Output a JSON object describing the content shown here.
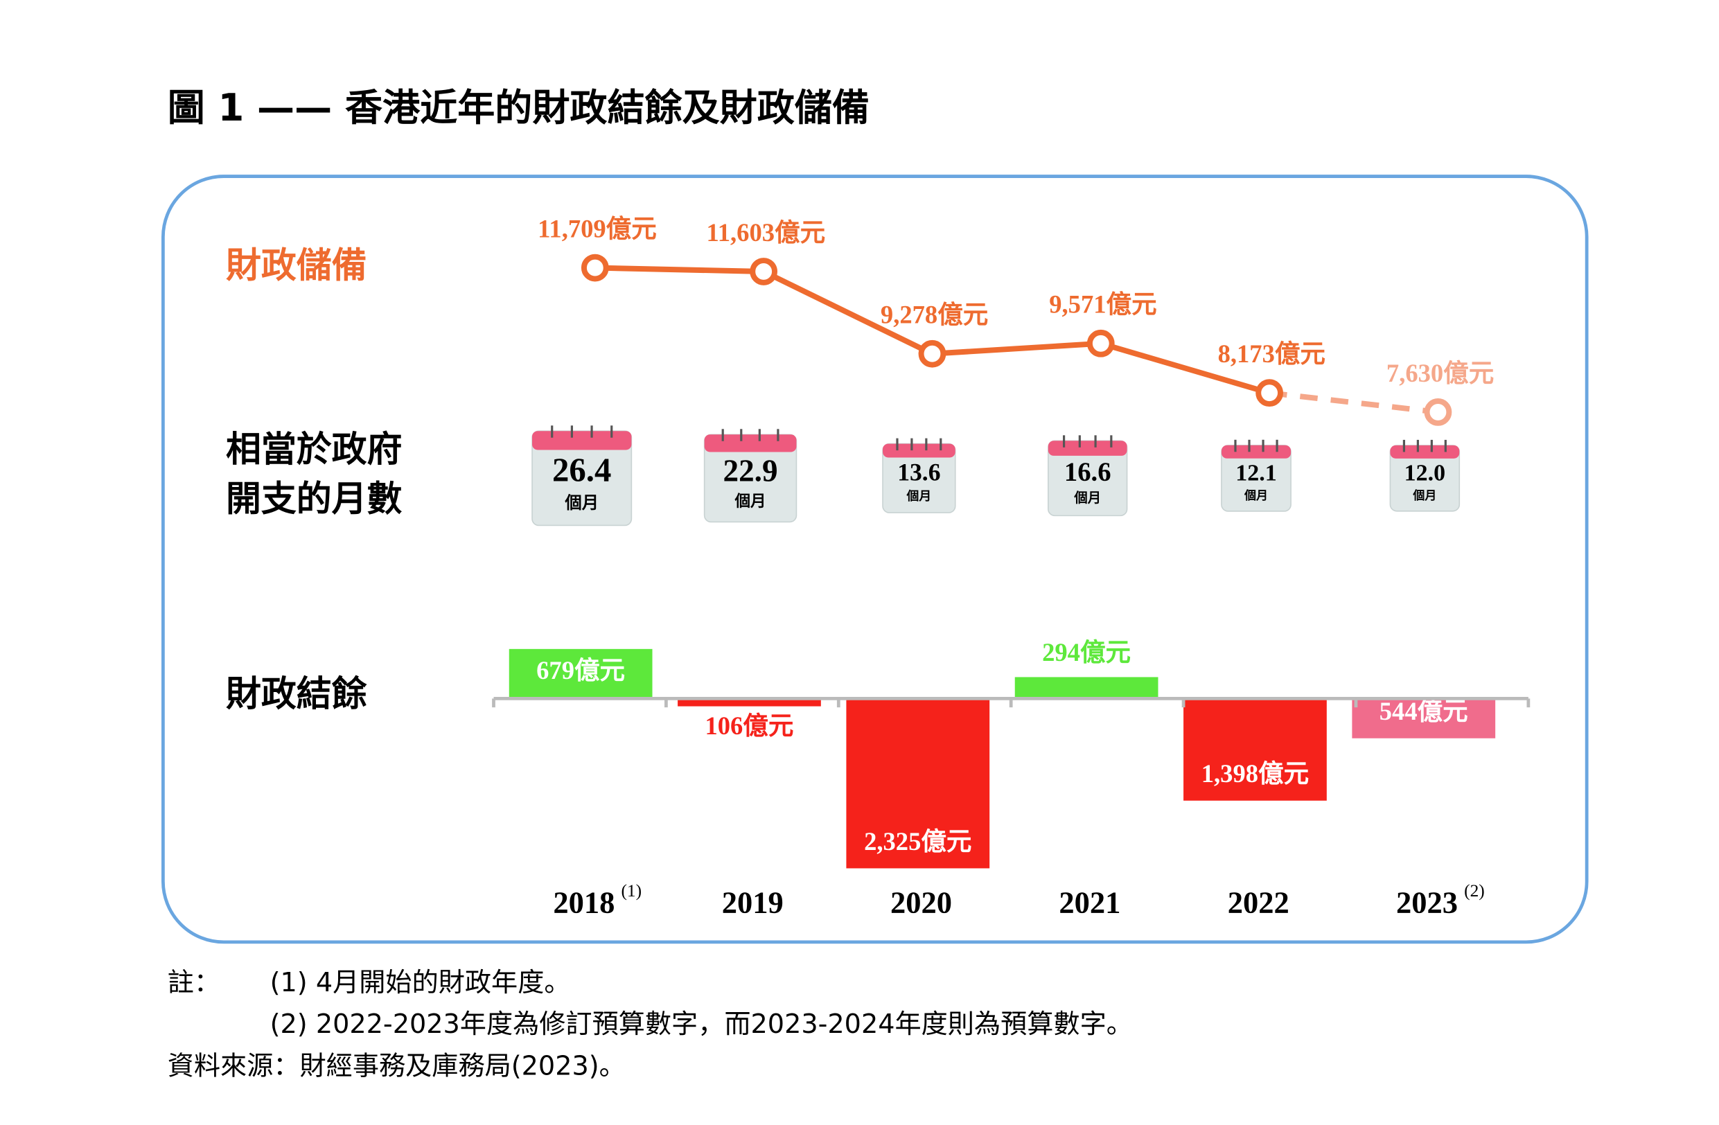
{
  "title": "圖 1 —— 香港近年的財政結餘及財政儲備",
  "chart_data": [
    {
      "type": "line",
      "label": "財政儲備",
      "categories": [
        "2018",
        "2019",
        "2020",
        "2021",
        "2022",
        "2023"
      ],
      "values": [
        11709,
        11603,
        9278,
        9571,
        8173,
        7630
      ],
      "value_labels": [
        "11,709億元",
        "11,603億元",
        "9,278億元",
        "9,571億元",
        "8,173億元",
        "7,630億元"
      ],
      "estimate": [
        false,
        false,
        false,
        false,
        false,
        true
      ],
      "color": "#ee6b2f",
      "estimate_color": "#f5a78a"
    },
    {
      "type": "calendar",
      "label": [
        "相當於政府",
        "開支的月數"
      ],
      "values": [
        26.4,
        22.9,
        13.6,
        16.6,
        12.1,
        12.0
      ],
      "value_labels": [
        "26.4",
        "22.9",
        "13.6",
        "16.6",
        "12.1",
        "12.0"
      ],
      "unit": "個月",
      "color": "#ee5a7e"
    },
    {
      "type": "bar",
      "label": "財政結餘",
      "categories": [
        "2018",
        "2019",
        "2020",
        "2021",
        "2022",
        "2023"
      ],
      "category_notes": [
        "(1)",
        null,
        null,
        null,
        null,
        "(2)"
      ],
      "values": [
        679,
        -106,
        -2325,
        294,
        -1398,
        -544
      ],
      "value_labels": [
        "679億元",
        "106億元",
        "2,325億元",
        "294億元",
        "1,398億元",
        "544億元"
      ],
      "colors": [
        "#5de83b",
        "#f5221b",
        "#f5221b",
        "#5de83b",
        "#f5221b",
        "#f06c8c"
      ]
    }
  ],
  "notes_label": "註：",
  "notes": [
    "(1)  4月開始的財政年度。",
    "(2)  2022-2023年度為修訂預算數字，而2023-2024年度則為預算數字。"
  ],
  "source": "資料來源：財經事務及庫務局(2023)。"
}
